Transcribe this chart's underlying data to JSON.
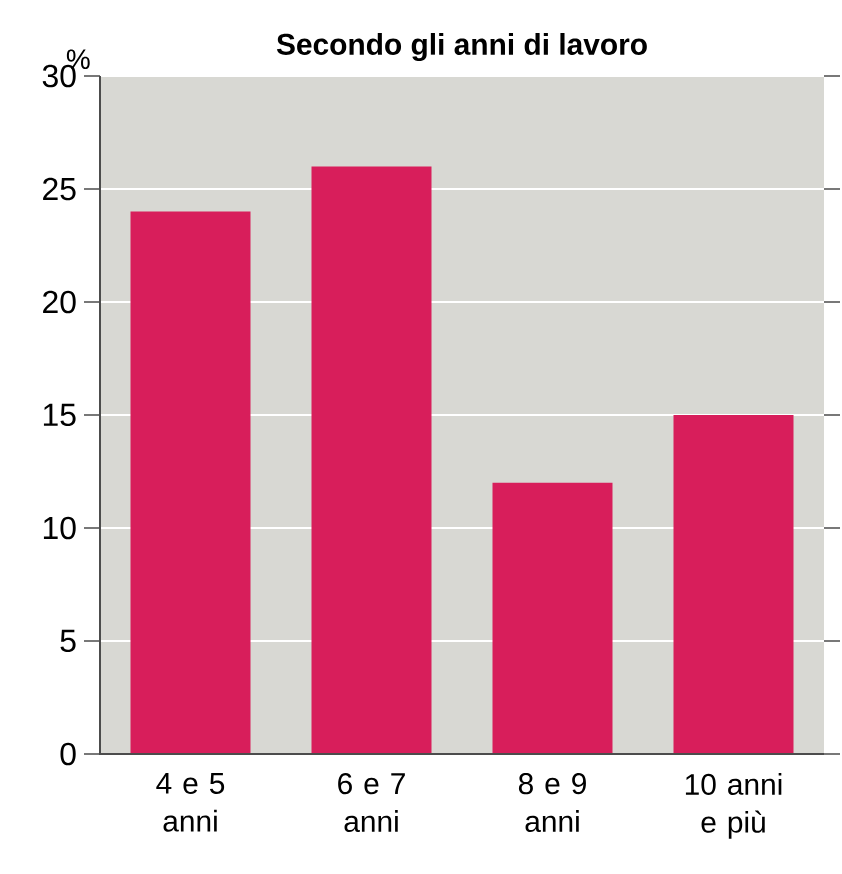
{
  "chart_data": {
    "type": "bar",
    "title": "Secondo gli anni di lavoro",
    "ylabel": "%",
    "categories": [
      "4 e 5 anni",
      "6 e 7 anni",
      "8 e 9 anni",
      "10 anni e più"
    ],
    "values": [
      24,
      26,
      12,
      15
    ],
    "color": "#d81e5b",
    "ylim": [
      0,
      30
    ],
    "yticks": [
      0,
      5,
      10,
      15,
      20,
      25,
      30
    ],
    "grid": "y"
  }
}
